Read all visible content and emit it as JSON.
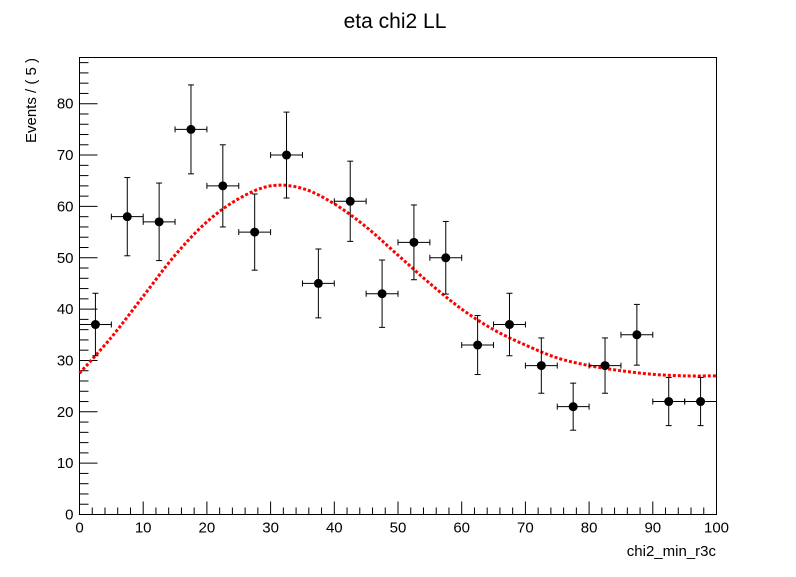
{
  "chart_data": {
    "type": "scatter",
    "title": "eta chi2 LL",
    "xlabel": "chi2_min_r3c",
    "ylabel": "Events / ( 5 )",
    "xlim": [
      0,
      100
    ],
    "ylim": [
      0,
      89
    ],
    "x_major_ticks": [
      0,
      10,
      20,
      30,
      40,
      50,
      60,
      70,
      80,
      90,
      100
    ],
    "y_major_ticks": [
      0,
      10,
      20,
      30,
      40,
      50,
      60,
      70,
      80
    ],
    "grid": false,
    "legend": "none",
    "bin_width": 5,
    "data_color": "#000000",
    "fit_color": "#ff0000",
    "series": [
      {
        "kind": "data-points-with-errors",
        "x": [
          2.5,
          7.5,
          12.5,
          17.5,
          22.5,
          27.5,
          32.5,
          37.5,
          42.5,
          47.5,
          52.5,
          57.5,
          62.5,
          67.5,
          72.5,
          77.5,
          82.5,
          87.5,
          92.5,
          97.5
        ],
        "y": [
          37,
          58,
          57,
          75,
          64,
          55,
          70,
          45,
          61,
          43,
          53,
          50,
          33,
          37,
          29,
          21,
          29,
          35,
          22,
          22
        ]
      },
      {
        "kind": "fit-curve",
        "x": [
          0,
          5,
          10,
          15,
          20,
          25,
          30,
          35,
          40,
          45,
          50,
          55,
          60,
          65,
          70,
          75,
          80,
          85,
          90,
          95,
          100
        ],
        "y": [
          27.5,
          34.5,
          42.5,
          50.5,
          57,
          61.5,
          64,
          63.5,
          60.5,
          56,
          50.5,
          45,
          40,
          36,
          33,
          30.5,
          29,
          28,
          27.3,
          27,
          27
        ]
      }
    ]
  }
}
